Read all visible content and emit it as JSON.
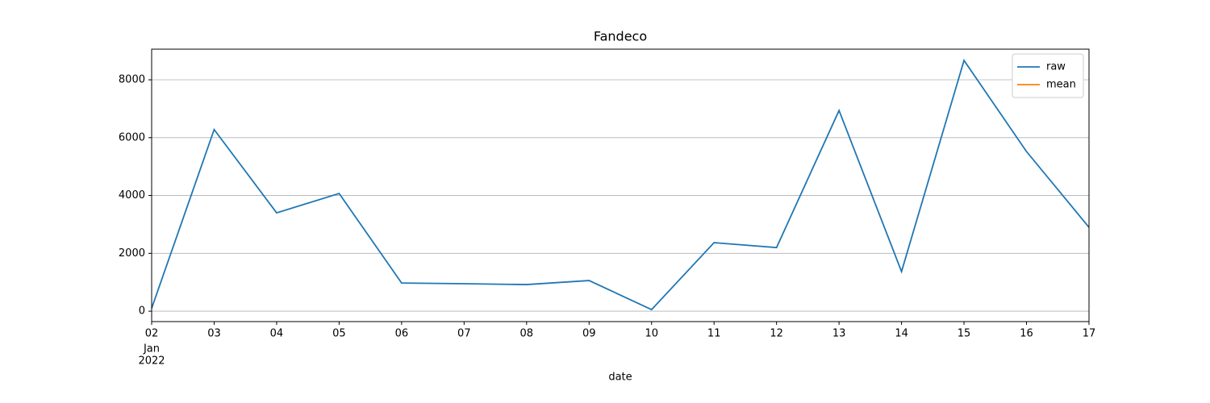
{
  "chart_data": {
    "type": "line",
    "title": "Fandeco",
    "xlabel": "date",
    "x": [
      "2022-01-02",
      "2022-01-03",
      "2022-01-04",
      "2022-01-05",
      "2022-01-06",
      "2022-01-07",
      "2022-01-08",
      "2022-01-09",
      "2022-01-10",
      "2022-01-11",
      "2022-01-12",
      "2022-01-13",
      "2022-01-14",
      "2022-01-15",
      "2022-01-16",
      "2022-01-17"
    ],
    "series": [
      {
        "name": "raw",
        "color": "#1f77b4",
        "values": [
          100,
          6280,
          3400,
          4070,
          975,
          950,
          920,
          1060,
          55,
          2370,
          2200,
          6940,
          1370,
          8670,
          5520,
          2900
        ]
      },
      {
        "name": "mean",
        "color": "#ff7f0e",
        "values": [
          null,
          null,
          null,
          null,
          null,
          null,
          null,
          null,
          null,
          null,
          null,
          null,
          null,
          null,
          null,
          null
        ]
      }
    ],
    "xlim": [
      "2022-01-02",
      "2022-01-17"
    ],
    "xticks": [
      {
        "value": "2022-01-02",
        "label": "02"
      },
      {
        "value": "2022-01-03",
        "label": "03"
      },
      {
        "value": "2022-01-04",
        "label": "04"
      },
      {
        "value": "2022-01-05",
        "label": "05"
      },
      {
        "value": "2022-01-06",
        "label": "06"
      },
      {
        "value": "2022-01-07",
        "label": "07"
      },
      {
        "value": "2022-01-08",
        "label": "08"
      },
      {
        "value": "2022-01-09",
        "label": "09"
      },
      {
        "value": "2022-01-10",
        "label": "10"
      },
      {
        "value": "2022-01-11",
        "label": "11"
      },
      {
        "value": "2022-01-12",
        "label": "12"
      },
      {
        "value": "2022-01-13",
        "label": "13"
      },
      {
        "value": "2022-01-14",
        "label": "14"
      },
      {
        "value": "2022-01-15",
        "label": "15"
      },
      {
        "value": "2022-01-16",
        "label": "16"
      },
      {
        "value": "2022-01-17",
        "label": "17"
      }
    ],
    "x_period_labels": [
      "Jan",
      "2022"
    ],
    "ylim": [
      -360,
      9060
    ],
    "yticks": [
      0,
      2000,
      4000,
      6000,
      8000
    ],
    "grid": "y",
    "legend": "upper right"
  }
}
